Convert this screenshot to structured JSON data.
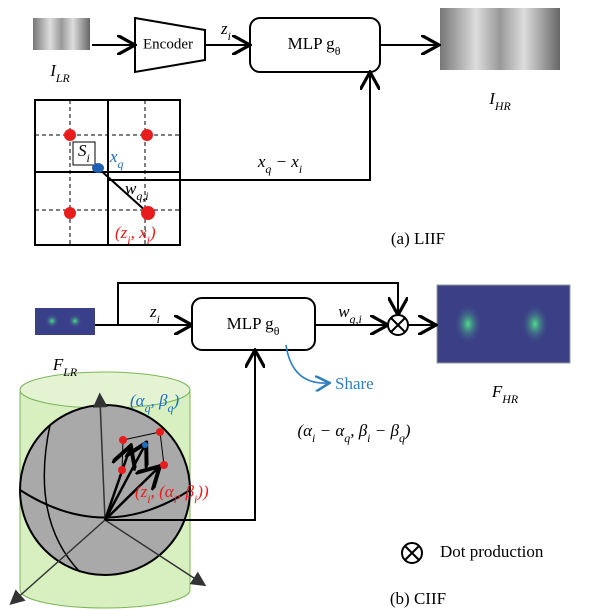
{
  "liif": {
    "i_lr": [
      "I",
      {
        "sub": "LR"
      }
    ],
    "encoder": "Encoder",
    "z": [
      "z",
      {
        "sub": "i"
      }
    ],
    "mlp": [
      "MLP g",
      {
        "sub": "θ"
      }
    ],
    "i_hr": [
      "I",
      {
        "sub": "HR"
      }
    ],
    "s": [
      "S",
      {
        "sub": "i"
      }
    ],
    "xq": [
      "x",
      {
        "sub": "q"
      }
    ],
    "w": [
      "w",
      {
        "sub": "q,i"
      }
    ],
    "zx": [
      "(z",
      {
        "sub": "i"
      },
      ", x",
      {
        "sub": "i"
      },
      ")"
    ],
    "diff": [
      "x",
      {
        "sub": "q"
      },
      " − x",
      {
        "sub": "i"
      }
    ],
    "caption": "(a) LIIF"
  },
  "ciif": {
    "f_lr": [
      "F",
      {
        "sub": "LR"
      }
    ],
    "z": [
      "z",
      {
        "sub": "i"
      }
    ],
    "mlp": [
      "MLP g",
      {
        "sub": "θ"
      }
    ],
    "w": [
      "w",
      {
        "sub": "q,i"
      }
    ],
    "share": "Share",
    "f_hr": [
      "F",
      {
        "sub": "HR"
      }
    ],
    "diff": [
      "(α",
      {
        "sub": "i"
      },
      " − α",
      {
        "sub": "q"
      },
      ", β",
      {
        "sub": "i"
      },
      " − β",
      {
        "sub": "q"
      },
      ")"
    ],
    "aq": [
      "(α",
      {
        "sub": "q"
      },
      ", β",
      {
        "sub": "q"
      },
      ")"
    ],
    "za": [
      "(z",
      {
        "sub": "i"
      },
      ", (α",
      {
        "sub": "i"
      },
      ", β",
      {
        "sub": "i"
      },
      "))"
    ],
    "legend": "Dot production",
    "caption": "(b) CIIF"
  }
}
